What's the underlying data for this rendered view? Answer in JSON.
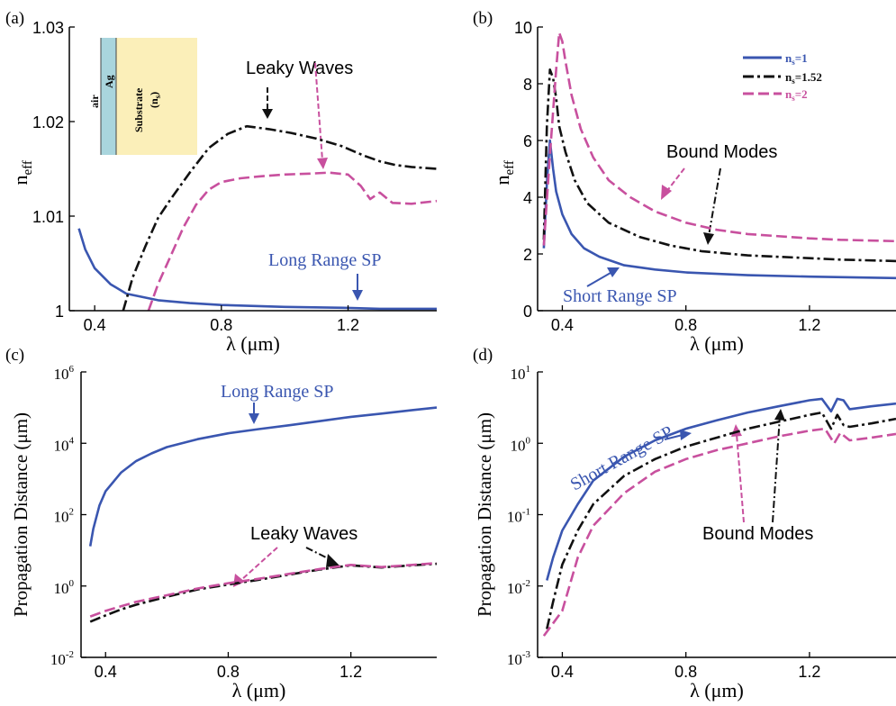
{
  "colors": {
    "ns1": "#3a56b0",
    "ns152": "#111111",
    "ns2": "#c8509e",
    "substrate": "#fbefb9",
    "ag": "#a9d5dd",
    "axis": "#000000"
  },
  "panels": {
    "a": {
      "label": "(a)",
      "xlabel": "λ (μm)",
      "ylabel": "n",
      "ylabel_sub": "eff",
      "yticks": [
        "1",
        "1.01",
        "1.02",
        "1.03"
      ],
      "xticks": [
        "0.4",
        "0.8",
        "1.2"
      ],
      "inset": {
        "air": "air",
        "ag": "Ag",
        "substrate": "Substrate",
        "ns": "(n",
        "ns_sub": "s",
        "ns_close": ")"
      },
      "annotations": {
        "leaky": "Leaky Waves",
        "lrsp": "Long Range SP"
      }
    },
    "b": {
      "label": "(b)",
      "xlabel": "λ (μm)",
      "ylabel": "n",
      "ylabel_sub": "eff",
      "yticks": [
        "0",
        "2",
        "4",
        "6",
        "8",
        "10"
      ],
      "xticks": [
        "0.4",
        "0.8",
        "1.2"
      ],
      "legend": [
        {
          "main": "n",
          "sub": "s",
          "tail": "=1"
        },
        {
          "main": "n",
          "sub": "s",
          "tail": "=1.52"
        },
        {
          "main": "n",
          "sub": "s",
          "tail": "=2"
        }
      ],
      "annotations": {
        "bound": "Bound Modes",
        "srsp": "Short Range SP"
      }
    },
    "c": {
      "label": "(c)",
      "xlabel": "λ (μm)",
      "ylabel": "Propagation Distance (μm)",
      "yticks": [
        {
          "base": "10",
          "exp": "-2"
        },
        {
          "base": "10",
          "exp": "0"
        },
        {
          "base": "10",
          "exp": "2"
        },
        {
          "base": "10",
          "exp": "4"
        },
        {
          "base": "10",
          "exp": "6"
        }
      ],
      "xticks": [
        "0.4",
        "0.8",
        "1.2"
      ],
      "annotations": {
        "lrsp": "Long Range SP",
        "leaky": "Leaky Waves"
      }
    },
    "d": {
      "label": "(d)",
      "xlabel": "λ (μm)",
      "ylabel": "Propagation Distance (μm)",
      "yticks": [
        {
          "base": "10",
          "exp": "-3"
        },
        {
          "base": "10",
          "exp": "-2"
        },
        {
          "base": "10",
          "exp": "-1"
        },
        {
          "base": "10",
          "exp": "0"
        },
        {
          "base": "10",
          "exp": "1"
        }
      ],
      "xticks": [
        "0.4",
        "0.8",
        "1.2"
      ],
      "annotations": {
        "srsp": "Short Range SP",
        "bound": "Bound Modes"
      }
    }
  },
  "chart_data": [
    {
      "panel": "a",
      "type": "line",
      "xlim": [
        0.32,
        1.48
      ],
      "ylim": [
        1.0,
        1.03
      ],
      "series": [
        {
          "name": "ns=1",
          "x": [
            0.35,
            0.37,
            0.4,
            0.45,
            0.5,
            0.6,
            0.7,
            0.8,
            1.0,
            1.2,
            1.3,
            1.48
          ],
          "y": [
            1.0087,
            1.0065,
            1.0045,
            1.0028,
            1.0018,
            1.0011,
            1.0008,
            1.0006,
            1.0004,
            1.0003,
            1.0002,
            1.0002
          ]
        },
        {
          "name": "ns=1.52",
          "x": [
            0.49,
            0.52,
            0.56,
            0.6,
            0.64,
            0.7,
            0.76,
            0.82,
            0.88,
            0.95,
            1.02,
            1.1,
            1.18,
            1.25,
            1.3,
            1.35,
            1.4,
            1.48
          ],
          "y": [
            1.0,
            1.0035,
            1.0068,
            1.0098,
            1.0118,
            1.0146,
            1.0172,
            1.0187,
            1.0195,
            1.0192,
            1.0188,
            1.0182,
            1.0174,
            1.0164,
            1.0158,
            1.0154,
            1.0152,
            1.015
          ]
        },
        {
          "name": "ns=2",
          "x": [
            0.57,
            0.6,
            0.64,
            0.68,
            0.72,
            0.76,
            0.8,
            0.86,
            0.92,
            1.0,
            1.08,
            1.14,
            1.2,
            1.24,
            1.27,
            1.3,
            1.34,
            1.4,
            1.48
          ],
          "y": [
            1.0,
            1.0028,
            1.0058,
            1.0088,
            1.0112,
            1.0128,
            1.0136,
            1.014,
            1.0142,
            1.0144,
            1.0145,
            1.0146,
            1.0144,
            1.0132,
            1.0118,
            1.0125,
            1.0114,
            1.0113,
            1.0116
          ]
        }
      ]
    },
    {
      "panel": "b",
      "type": "line",
      "xlim": [
        0.32,
        1.48
      ],
      "ylim": [
        0,
        10
      ],
      "series": [
        {
          "name": "ns=1",
          "x": [
            0.34,
            0.35,
            0.36,
            0.37,
            0.38,
            0.4,
            0.43,
            0.47,
            0.52,
            0.6,
            0.7,
            0.8,
            1.0,
            1.2,
            1.48
          ],
          "y": [
            2.2,
            4.5,
            6.0,
            5.0,
            4.2,
            3.4,
            2.7,
            2.2,
            1.9,
            1.6,
            1.45,
            1.35,
            1.25,
            1.2,
            1.15
          ]
        },
        {
          "name": "ns=1.52",
          "x": [
            0.34,
            0.35,
            0.36,
            0.37,
            0.38,
            0.39,
            0.41,
            0.44,
            0.48,
            0.55,
            0.65,
            0.75,
            0.85,
            1.0,
            1.2,
            1.3,
            1.48
          ],
          "y": [
            2.5,
            6.5,
            8.5,
            8.2,
            7.5,
            6.5,
            5.6,
            4.6,
            3.8,
            3.1,
            2.6,
            2.3,
            2.1,
            1.95,
            1.85,
            1.8,
            1.75
          ]
        },
        {
          "name": "ns=2",
          "x": [
            0.34,
            0.36,
            0.38,
            0.39,
            0.4,
            0.41,
            0.43,
            0.46,
            0.5,
            0.55,
            0.62,
            0.7,
            0.8,
            0.9,
            1.0,
            1.2,
            1.3,
            1.48
          ],
          "y": [
            2.3,
            5.5,
            8.5,
            9.8,
            9.5,
            8.8,
            7.6,
            6.4,
            5.4,
            4.6,
            4.0,
            3.5,
            3.1,
            2.85,
            2.7,
            2.55,
            2.5,
            2.45
          ]
        }
      ]
    },
    {
      "panel": "c",
      "type": "line",
      "y_scale": "log",
      "xlim": [
        0.32,
        1.48
      ],
      "ylim": [
        0.01,
        1000000
      ],
      "series": [
        {
          "name": "ns=1",
          "x": [
            0.35,
            0.36,
            0.38,
            0.4,
            0.45,
            0.5,
            0.55,
            0.6,
            0.7,
            0.8,
            0.9,
            1.0,
            1.1,
            1.2,
            1.3,
            1.4,
            1.48
          ],
          "y": [
            13,
            40,
            180,
            450,
            1500,
            3200,
            5200,
            7800,
            13000,
            19000,
            25000,
            32000,
            42000,
            55000,
            68000,
            85000,
            100000
          ]
        },
        {
          "name": "ns=1.52",
          "x": [
            0.35,
            0.4,
            0.45,
            0.5,
            0.6,
            0.7,
            0.8,
            0.9,
            1.0,
            1.1,
            1.2,
            1.3,
            1.4,
            1.48
          ],
          "y": [
            0.1,
            0.15,
            0.22,
            0.3,
            0.5,
            0.8,
            1.1,
            1.5,
            2.1,
            2.9,
            3.8,
            3.3,
            3.8,
            4.2
          ]
        },
        {
          "name": "ns=2",
          "x": [
            0.35,
            0.4,
            0.45,
            0.5,
            0.6,
            0.7,
            0.8,
            0.9,
            1.0,
            1.1,
            1.2,
            1.3,
            1.4,
            1.48
          ],
          "y": [
            0.14,
            0.2,
            0.27,
            0.36,
            0.55,
            0.85,
            1.2,
            1.6,
            2.2,
            3.0,
            3.9,
            3.4,
            3.9,
            4.4
          ]
        }
      ]
    },
    {
      "panel": "d",
      "type": "line",
      "y_scale": "log",
      "xlim": [
        0.32,
        1.48
      ],
      "ylim": [
        0.001,
        10
      ],
      "series": [
        {
          "name": "ns=1",
          "x": [
            0.35,
            0.37,
            0.4,
            0.45,
            0.5,
            0.6,
            0.7,
            0.8,
            0.9,
            1.0,
            1.1,
            1.2,
            1.24,
            1.27,
            1.29,
            1.31,
            1.33,
            1.4,
            1.48
          ],
          "y": [
            0.012,
            0.025,
            0.06,
            0.14,
            0.3,
            0.65,
            1.1,
            1.6,
            2.1,
            2.7,
            3.3,
            4.0,
            4.2,
            2.8,
            4.2,
            4.0,
            3.0,
            3.3,
            3.6
          ]
        },
        {
          "name": "ns=1.52",
          "x": [
            0.35,
            0.37,
            0.4,
            0.45,
            0.5,
            0.6,
            0.7,
            0.8,
            0.9,
            1.0,
            1.1,
            1.2,
            1.24,
            1.27,
            1.29,
            1.31,
            1.33,
            1.4,
            1.48
          ],
          "y": [
            0.0025,
            0.006,
            0.02,
            0.06,
            0.14,
            0.35,
            0.6,
            0.9,
            1.2,
            1.6,
            2.0,
            2.5,
            2.7,
            1.6,
            2.5,
            1.8,
            1.7,
            1.9,
            2.2
          ]
        },
        {
          "name": "ns=2",
          "x": [
            0.34,
            0.37,
            0.4,
            0.45,
            0.5,
            0.6,
            0.7,
            0.8,
            0.9,
            1.0,
            1.1,
            1.2,
            1.25,
            1.28,
            1.3,
            1.33,
            1.4,
            1.48
          ],
          "y": [
            0.002,
            0.003,
            0.0045,
            0.025,
            0.07,
            0.2,
            0.4,
            0.6,
            0.8,
            1.0,
            1.25,
            1.5,
            1.6,
            1.0,
            1.4,
            1.1,
            1.2,
            1.35
          ]
        }
      ]
    }
  ]
}
